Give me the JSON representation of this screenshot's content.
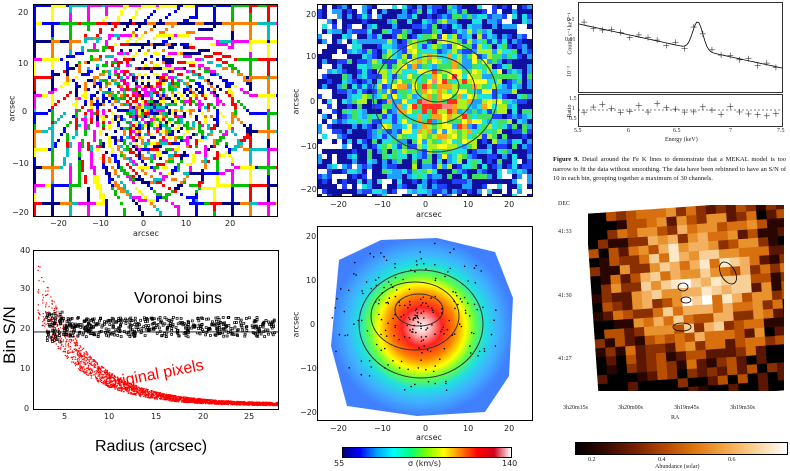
{
  "panel_a": {
    "x_axis_label": "arcsec",
    "y_axis_label": "arcsec",
    "x_ticks": [
      "−20",
      "−10",
      "0",
      "10",
      "20"
    ],
    "y_ticks": [
      "20",
      "10",
      "0",
      "−10",
      "−20"
    ]
  },
  "panel_b": {
    "y_axis_label": "Bin  S/N",
    "x_axis_label": "Radius (arcsec)",
    "x_ticks": [
      "5",
      "10",
      "15",
      "20",
      "25"
    ],
    "y_ticks": [
      "40",
      "30",
      "20",
      "10",
      "0"
    ],
    "voronoi_label": "Voronoi bins",
    "original_label": "Original pixels",
    "colors": {
      "voronoi": "#000000",
      "original": "#ff0000"
    }
  },
  "panel_c": {
    "x_axis_label": "arcsec",
    "y_axis_label": "arcsec",
    "x_ticks": [
      "−20",
      "−10",
      "0",
      "10",
      "20"
    ],
    "y_ticks": [
      "20",
      "10",
      "0",
      "−10",
      "−20"
    ]
  },
  "panel_d": {
    "x_axis_label": "arcsec",
    "y_axis_label": "arcsec",
    "x_ticks": [
      "−20",
      "−10",
      "0",
      "10",
      "20"
    ],
    "y_ticks": [
      "20",
      "10",
      "0",
      "−10",
      "−20"
    ],
    "colorbar_min": "55",
    "colorbar_max": "140",
    "colorbar_label": "σ (km/s)"
  },
  "spectrum": {
    "ylabel_top": "Counts s⁻¹ keV⁻¹",
    "ylabel_bottom": "Ratio",
    "xlabel": "Energy (keV)",
    "x_ticks": [
      "5.5",
      "6",
      "6.5",
      "7",
      "7.5"
    ],
    "y_ticks_top": [
      "0.1",
      "0.01",
      "10⁻³"
    ],
    "y_ticks_bottom": [
      "1.5",
      "1",
      "0.5"
    ]
  },
  "caption": {
    "bold": "Figure 9.",
    "text": " Detail around the Fe K lines to demonstrate that a MEKAL model is too narrow to fit the data without smoothing. The data have been rebinned to have an S/N of 10 in each bin, grouping together a maximum of 30 channels."
  },
  "abundance_map": {
    "dec_label": "DEC",
    "ra_label": "RA",
    "dec_ticks": [
      "41:33",
      "41:30",
      "41:27"
    ],
    "ra_ticks": [
      "3h20m15s",
      "3h20m00s",
      "3h19m45s",
      "3h19m30s"
    ],
    "colorbar_ticks": [
      "0.2",
      "0.4",
      "0.6"
    ],
    "colorbar_label": "Abundance (solar)"
  }
}
